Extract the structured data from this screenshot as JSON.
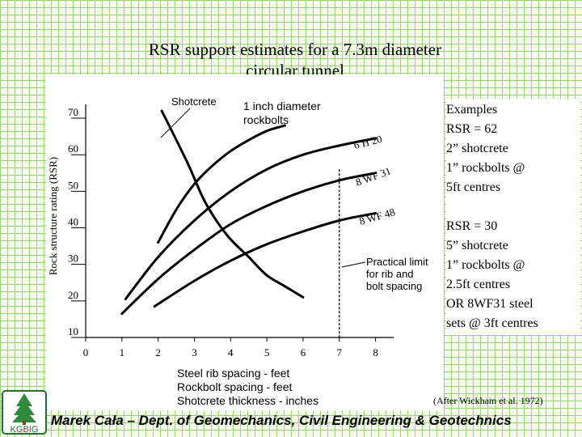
{
  "slide": {
    "title_line1": "RSR support estimates for a 7.3m diameter",
    "title_line2": "circular tunnel",
    "source": "(After Wickham et al. 1972)",
    "footer": "Marek Cała – Dept. of Geomechanics, Civil Engineering & Geotechnics",
    "logo_text": "KGBIG"
  },
  "examples": {
    "heading": "Examples",
    "ex1": [
      "RSR = 62",
      "2” shotcrete",
      "1” rockbolts @",
      "5ft centres"
    ],
    "ex2": [
      "RSR = 30",
      "5” shotcrete",
      "1” rockbolts @",
      "2.5ft centres",
      "OR 8WF31 steel",
      "sets @ 3ft centres"
    ]
  },
  "chart_data": {
    "type": "line",
    "ylabel": "Rock structure rating (RSR)",
    "xlabel_lines": [
      "Steel rib spacing - feet",
      "Rockbolt spacing - feet",
      "Shotcrete thickness - inches"
    ],
    "x_ticks": [
      "0",
      "1",
      "2",
      "3",
      "4",
      "5",
      "6",
      "7",
      "8"
    ],
    "y_ticks": [
      "10",
      "20",
      "30",
      "40",
      "50",
      "60",
      "70"
    ],
    "xlim": [
      0,
      8.5
    ],
    "ylim": [
      10,
      72
    ],
    "series": [
      {
        "name": "Shotcrete",
        "points": [
          [
            2.1,
            72
          ],
          [
            2.8,
            58
          ],
          [
            3.3,
            47
          ],
          [
            3.9,
            38
          ],
          [
            4.5,
            32
          ],
          [
            5.0,
            27
          ],
          [
            5.5,
            24
          ],
          [
            6.0,
            21
          ]
        ]
      },
      {
        "name": "1 inch diameter rockbolts",
        "points": [
          [
            2.0,
            36
          ],
          [
            2.5,
            45
          ],
          [
            3.0,
            52
          ],
          [
            3.5,
            57
          ],
          [
            4.0,
            61
          ],
          [
            4.5,
            64
          ],
          [
            5.0,
            66.5
          ],
          [
            5.5,
            68
          ]
        ]
      },
      {
        "name": "6 H 20",
        "points": [
          [
            1.1,
            20.5
          ],
          [
            2.0,
            32
          ],
          [
            3.0,
            42
          ],
          [
            4.0,
            50
          ],
          [
            5.0,
            56
          ],
          [
            6.0,
            60
          ],
          [
            7.0,
            62.5
          ],
          [
            8.0,
            64.5
          ]
        ]
      },
      {
        "name": "8 WF 31",
        "points": [
          [
            1.0,
            16.5
          ],
          [
            2.0,
            26
          ],
          [
            3.0,
            34
          ],
          [
            4.0,
            41
          ],
          [
            5.0,
            46
          ],
          [
            6.0,
            50
          ],
          [
            7.0,
            53
          ],
          [
            8.0,
            55
          ]
        ]
      },
      {
        "name": "8 WF 48",
        "points": [
          [
            1.9,
            18.5
          ],
          [
            3.0,
            25.5
          ],
          [
            4.0,
            31
          ],
          [
            5.0,
            35.5
          ],
          [
            6.0,
            39
          ],
          [
            7.0,
            42
          ],
          [
            8.0,
            44
          ]
        ]
      }
    ],
    "limit_line": {
      "x": 7.0,
      "label_lines": [
        "Practical limit",
        "for rib and",
        "bolt spacing"
      ]
    },
    "annotations": {
      "shotcrete": "Shotcrete",
      "rockbolts_lines": [
        "1 inch diameter",
        "rockbolts"
      ],
      "h20": "6 H 20",
      "wf31": "8 WF 31",
      "wf48": "8 WF 48"
    }
  }
}
